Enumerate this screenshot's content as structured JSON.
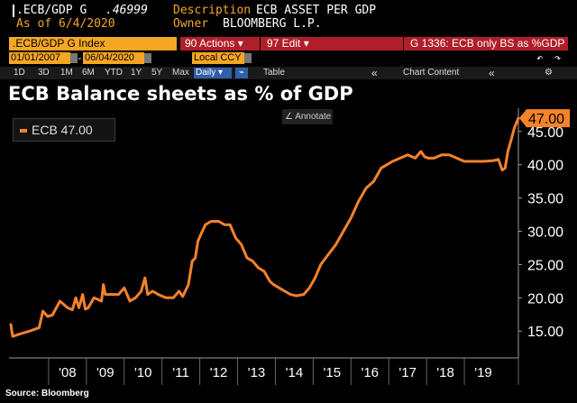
{
  "header": {
    "ticker": ".ECB/GDP G",
    "price": ".46999",
    "description_label": "Description",
    "description_value": "ECB ASSET PER GDP",
    "as_of": "As of 6/4/2020",
    "owner_label": "Owner",
    "owner_value": "BLOOMBERG L.P."
  },
  "menu": {
    "security": ".ECB/GDP G Index",
    "actions": "90 Actions ▾",
    "edit": "97 Edit ▾",
    "graph_title": "G 1336: ECB only BS as %GDP"
  },
  "range": {
    "start": "01/01/2007",
    "end": "06/04/2020",
    "currency": "Local CCY"
  },
  "periods": [
    "1D",
    "3D",
    "1M",
    "6M",
    "YTD",
    "1Y",
    "5Y",
    "Max"
  ],
  "toolbar": {
    "frequency": "Daily ▾",
    "table": "Table",
    "chart_content": "Chart Content",
    "collapse": "«",
    "undo": "↶",
    "redo": "↷",
    "gear": "⚙",
    "line_icon": "⌁"
  },
  "colors": {
    "accent": "#f5a623",
    "series": "#f6822a",
    "menubar": "#b01e2a",
    "background": "#000000"
  },
  "annotate_label": "∠ Annotate",
  "source": "Source: Bloomberg",
  "chart_data": {
    "type": "line",
    "title": "ECB Balance sheets as % of GDP",
    "legend": "ECB 47.00",
    "last_value_label": "47.00",
    "y_ticks": [
      "15.00",
      "20.00",
      "25.00",
      "30.00",
      "35.00",
      "40.00",
      "45.00"
    ],
    "y_tick_values": [
      15,
      20,
      25,
      30,
      35,
      40,
      45
    ],
    "x_ticks": [
      "'08",
      "'09",
      "'10",
      "'11",
      "'12",
      "'13",
      "'14",
      "'15",
      "'16",
      "'17",
      "'18",
      "'19"
    ],
    "x_tick_values": [
      2008,
      2009,
      2010,
      2011,
      2012,
      2013,
      2014,
      2015,
      2016,
      2017,
      2018,
      2019
    ],
    "xlim": [
      2007.0,
      2020.43
    ],
    "ylim": [
      13.0,
      48.5
    ],
    "y_axis_side": "right",
    "grid": false,
    "series": [
      {
        "name": "ECB",
        "x": [
          2007.0,
          2007.05,
          2007.2,
          2007.5,
          2007.75,
          2007.85,
          2007.97,
          2008.1,
          2008.3,
          2008.5,
          2008.63,
          2008.72,
          2008.8,
          2008.9,
          2008.97,
          2009.05,
          2009.2,
          2009.4,
          2009.45,
          2009.5,
          2009.65,
          2009.85,
          2010.0,
          2010.15,
          2010.3,
          2010.45,
          2010.55,
          2010.62,
          2010.75,
          2010.9,
          2011.1,
          2011.3,
          2011.45,
          2011.55,
          2011.7,
          2011.8,
          2011.88,
          2011.95,
          2012.05,
          2012.15,
          2012.3,
          2012.5,
          2012.65,
          2012.8,
          2012.95,
          2013.1,
          2013.25,
          2013.4,
          2013.55,
          2013.7,
          2013.85,
          2013.95,
          2014.1,
          2014.25,
          2014.4,
          2014.55,
          2014.75,
          2014.9,
          2015.05,
          2015.2,
          2015.4,
          2015.6,
          2015.8,
          2016.0,
          2016.2,
          2016.4,
          2016.6,
          2016.8,
          2016.95,
          2017.1,
          2017.3,
          2017.5,
          2017.7,
          2017.85,
          2017.95,
          2018.05,
          2018.2,
          2018.4,
          2018.6,
          2018.8,
          2019.0,
          2019.2,
          2019.5,
          2019.75,
          2019.9,
          2020.0,
          2020.08,
          2020.15,
          2020.25,
          2020.32,
          2020.43
        ],
        "values": [
          16.0,
          14.2,
          14.5,
          15.0,
          15.5,
          18.0,
          17.2,
          17.4,
          19.5,
          18.5,
          18.2,
          20.0,
          18.5,
          20.5,
          18.3,
          18.5,
          20.0,
          19.5,
          22.0,
          20.5,
          20.5,
          20.5,
          21.5,
          19.5,
          20.0,
          21.0,
          23.0,
          20.5,
          21.0,
          20.5,
          20.0,
          20.0,
          21.0,
          20.2,
          22.0,
          25.5,
          26.0,
          28.5,
          29.8,
          31.0,
          31.5,
          31.5,
          31.0,
          31.0,
          29.0,
          28.0,
          26.0,
          25.5,
          24.5,
          24.0,
          22.5,
          22.0,
          21.5,
          21.0,
          20.5,
          20.3,
          20.5,
          21.5,
          23.0,
          25.0,
          26.5,
          28.0,
          30.0,
          32.0,
          34.5,
          36.5,
          37.5,
          39.5,
          40.0,
          40.5,
          41.0,
          41.5,
          41.0,
          42.0,
          41.2,
          41.0,
          41.0,
          41.5,
          41.5,
          41.0,
          40.5,
          40.5,
          40.5,
          40.6,
          40.8,
          39.2,
          39.5,
          42.0,
          44.0,
          45.5,
          47.0
        ]
      }
    ]
  }
}
